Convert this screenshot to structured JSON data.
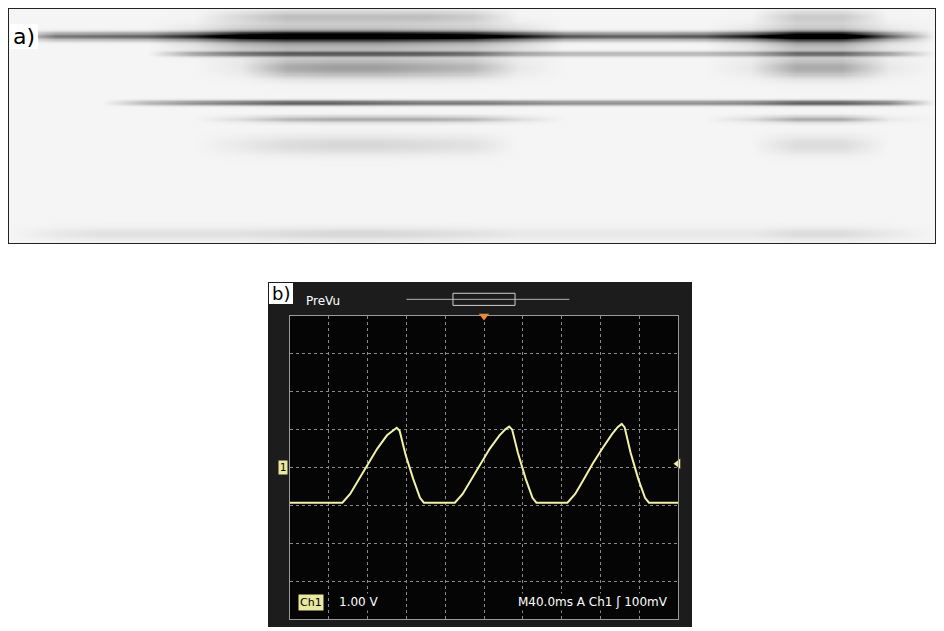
{
  "chart_data": [
    {
      "type": "heatmap",
      "panel": "a)",
      "colors": [
        "#f5f5f5",
        "#000000"
      ],
      "xlim": [
        0,
        100
      ],
      "ylim": [
        100,
        0
      ],
      "zlim": [
        0,
        1
      ],
      "tick_labels": false,
      "x": [
        0,
        5,
        10,
        15,
        20,
        25,
        30,
        35,
        40,
        45,
        50,
        55,
        60,
        65,
        70,
        75,
        80,
        85,
        90,
        95,
        100
      ],
      "streaks": [
        {
          "y": 3,
          "spread": 2,
          "intensity": [
            0,
            0,
            0,
            0,
            0,
            0.1,
            0.2,
            0.2,
            0.2,
            0.2,
            0.15,
            0,
            0,
            0,
            0,
            0,
            0,
            0.15,
            0.15,
            0,
            0
          ]
        },
        {
          "y": 11.5,
          "spread": 1.2,
          "intensity": [
            0,
            0.5,
            0.55,
            0.6,
            0.75,
            0.95,
            1,
            1,
            1,
            1,
            0.95,
            0.8,
            0.65,
            0.6,
            0.6,
            0.65,
            0.8,
            1,
            1,
            0.5,
            0
          ]
        },
        {
          "y": 12.5,
          "spread": 4,
          "intensity": [
            0,
            0,
            0,
            0,
            0.1,
            0.3,
            0.4,
            0.4,
            0.4,
            0.35,
            0.3,
            0.15,
            0,
            0,
            0,
            0,
            0.1,
            0.35,
            0.35,
            0.1,
            0
          ]
        },
        {
          "y": 19,
          "spread": 0.8,
          "intensity": [
            0,
            0,
            0,
            0,
            0.3,
            0.45,
            0.5,
            0.5,
            0.5,
            0.5,
            0.45,
            0.3,
            0.25,
            0.25,
            0.25,
            0.25,
            0.3,
            0.45,
            0.45,
            0.3,
            0
          ]
        },
        {
          "y": 25,
          "spread": 3,
          "intensity": [
            0,
            0,
            0,
            0,
            0,
            0.05,
            0.3,
            0.35,
            0.35,
            0.3,
            0.25,
            0.05,
            0,
            0,
            0,
            0,
            0.05,
            0.3,
            0.3,
            0.05,
            0
          ]
        },
        {
          "y": 40,
          "spread": 0.8,
          "intensity": [
            0,
            0,
            0,
            0.25,
            0.4,
            0.5,
            0.6,
            0.6,
            0.55,
            0.5,
            0.5,
            0.45,
            0.4,
            0.4,
            0.4,
            0.4,
            0.45,
            0.6,
            0.6,
            0.45,
            0
          ]
        },
        {
          "y": 47,
          "spread": 1,
          "intensity": [
            0,
            0,
            0,
            0,
            0,
            0.1,
            0.25,
            0.3,
            0.3,
            0.3,
            0.25,
            0.1,
            0,
            0,
            0,
            0,
            0.1,
            0.3,
            0.3,
            0.05,
            0
          ]
        },
        {
          "y": 58,
          "spread": 3,
          "intensity": [
            0,
            0,
            0,
            0,
            0,
            0.05,
            0.1,
            0.12,
            0.12,
            0.1,
            0.08,
            0,
            0,
            0,
            0,
            0,
            0,
            0.1,
            0.1,
            0,
            0
          ]
        },
        {
          "y": 96,
          "spread": 2,
          "intensity": [
            0,
            0.05,
            0.08,
            0.08,
            0.08,
            0.08,
            0.1,
            0.12,
            0.12,
            0.1,
            0.08,
            0.05,
            0.05,
            0.05,
            0.05,
            0.05,
            0.05,
            0.1,
            0.1,
            0.05,
            0
          ]
        }
      ]
    },
    {
      "type": "line",
      "panel": "b)",
      "header": "PreVu",
      "channel_label": "Ch1",
      "scale_label": "1.00 V",
      "timebase_label": "M40.0ms A Ch1 ʃ 100mV",
      "ground_marker": {
        "label": "1",
        "value": 0
      },
      "trigger_level": 0.1,
      "trigger_time": 0,
      "color": "#f2f2a8",
      "grid": true,
      "tick_labels": false,
      "xlim": [
        -200,
        200
      ],
      "xticks": [
        -200,
        -160,
        -120,
        -80,
        -40,
        0,
        40,
        80,
        120,
        160,
        200
      ],
      "ylim": [
        -4,
        4
      ],
      "yticks": [
        -4,
        -3,
        -2,
        -1,
        0,
        1,
        2,
        3,
        4
      ],
      "x": [
        -200,
        -146,
        -138,
        -130,
        -120,
        -110,
        -100,
        -94,
        -90,
        -87,
        -81,
        -73,
        -66,
        -62,
        -30,
        -22,
        -14,
        -4,
        6,
        16,
        22,
        26,
        29,
        35,
        43,
        50,
        54,
        86,
        94,
        102,
        112,
        122,
        132,
        138,
        142,
        145,
        151,
        159,
        166,
        170,
        200
      ],
      "values": [
        -0.93,
        -0.93,
        -0.7,
        -0.35,
        0.1,
        0.5,
        0.85,
        0.98,
        1.05,
        0.97,
        0.35,
        -0.3,
        -0.8,
        -0.93,
        -0.93,
        -0.7,
        -0.35,
        0.1,
        0.5,
        0.85,
        1.01,
        1.08,
        1.0,
        0.38,
        -0.3,
        -0.8,
        -0.93,
        -0.93,
        -0.7,
        -0.35,
        0.1,
        0.5,
        0.88,
        1.07,
        1.15,
        1.06,
        0.4,
        -0.3,
        -0.8,
        -0.93,
        -0.93
      ]
    }
  ]
}
